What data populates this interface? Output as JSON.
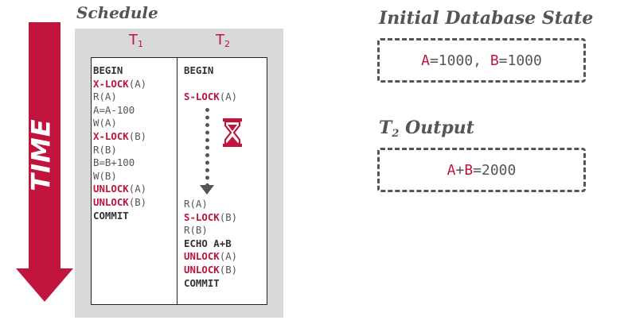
{
  "time_label": "TIME",
  "schedule": {
    "title": "Schedule",
    "t1_header": {
      "main": "T",
      "sub": "1"
    },
    "t2_header": {
      "main": "T",
      "sub": "2"
    },
    "t1_ops": [
      {
        "op": "BEGIN",
        "arg": "",
        "style": "kw"
      },
      {
        "op": "X-LOCK",
        "arg": "(A)",
        "style": "lock"
      },
      {
        "op": "R(A)",
        "arg": "",
        "style": "plain"
      },
      {
        "op": "A=A-100",
        "arg": "",
        "style": "plain"
      },
      {
        "op": "W(A)",
        "arg": "",
        "style": "plain"
      },
      {
        "op": "X-LOCK",
        "arg": "(B)",
        "style": "lock"
      },
      {
        "op": "R(B)",
        "arg": "",
        "style": "plain"
      },
      {
        "op": "B=B+100",
        "arg": "",
        "style": "plain"
      },
      {
        "op": "W(B)",
        "arg": "",
        "style": "plain"
      },
      {
        "op": "UNLOCK",
        "arg": "(A)",
        "style": "lock"
      },
      {
        "op": "UNLOCK",
        "arg": "(B)",
        "style": "lock"
      },
      {
        "op": "COMMIT",
        "arg": "",
        "style": "kw"
      }
    ],
    "t2_ops_before_wait": [
      {
        "op": "BEGIN",
        "arg": "",
        "style": "kw"
      },
      {
        "op": "",
        "arg": "",
        "style": "plain"
      },
      {
        "op": "S-LOCK",
        "arg": "(A)",
        "style": "lock"
      }
    ],
    "t2_ops_after_wait": [
      {
        "op": "R(A)",
        "arg": "",
        "style": "plain"
      },
      {
        "op": "S-LOCK",
        "arg": "(B)",
        "style": "lock"
      },
      {
        "op": "R(B)",
        "arg": "",
        "style": "plain"
      },
      {
        "op": "ECHO A+B",
        "arg": "",
        "style": "kw"
      },
      {
        "op": "UNLOCK",
        "arg": "(A)",
        "style": "lock"
      },
      {
        "op": "UNLOCK",
        "arg": "(B)",
        "style": "lock"
      },
      {
        "op": "COMMIT",
        "arg": "",
        "style": "kw"
      }
    ]
  },
  "initial_state": {
    "title": "Initial Database State",
    "a_var": "A",
    "a_val": "=1000, ",
    "b_var": "B",
    "b_val": "=1000"
  },
  "t2_output": {
    "title_main": "T",
    "title_sub": "2",
    "title_rest": " Output",
    "a_var": "A",
    "plus": "+",
    "b_var": "B",
    "result": "=2000"
  },
  "colors": {
    "accent": "#c0143c",
    "text": "#555555",
    "panel": "#d9d9d9"
  },
  "icons": {
    "wait": "hourglass-icon",
    "time": "down-arrow-icon"
  }
}
